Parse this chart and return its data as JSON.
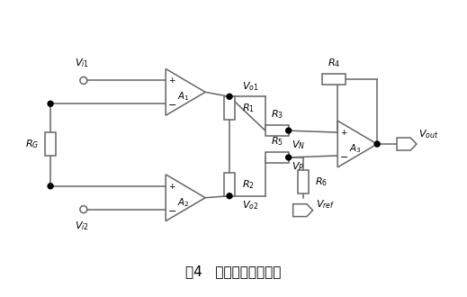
{
  "title": "图4   三运放仪表放大器",
  "title_fontsize": 11,
  "bg_color": "#ffffff",
  "line_color": "#666666",
  "line_width": 1.1
}
